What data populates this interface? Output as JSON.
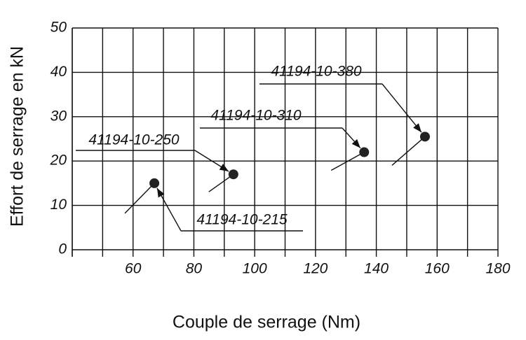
{
  "chart_data": {
    "type": "scatter",
    "xlabel": "Couple de serrage (Nm)",
    "ylabel": "Effort de serrage en kN",
    "x": [
      67,
      93,
      136,
      156
    ],
    "values": [
      15,
      17,
      22,
      25.5
    ],
    "point_labels": [
      "41194-10-215",
      "41194-10-250",
      "41194-10-310",
      "41194-10-380"
    ],
    "color": "#222222",
    "xlim": [
      40,
      180
    ],
    "xticks": [
      60,
      80,
      100,
      120,
      140,
      160,
      180
    ],
    "xminorticks": [
      40,
      50,
      70,
      90,
      110,
      130,
      150,
      170
    ],
    "ylim": [
      0,
      50
    ],
    "yticks": [
      0,
      10,
      20,
      30,
      40,
      50
    ],
    "grid": true
  }
}
